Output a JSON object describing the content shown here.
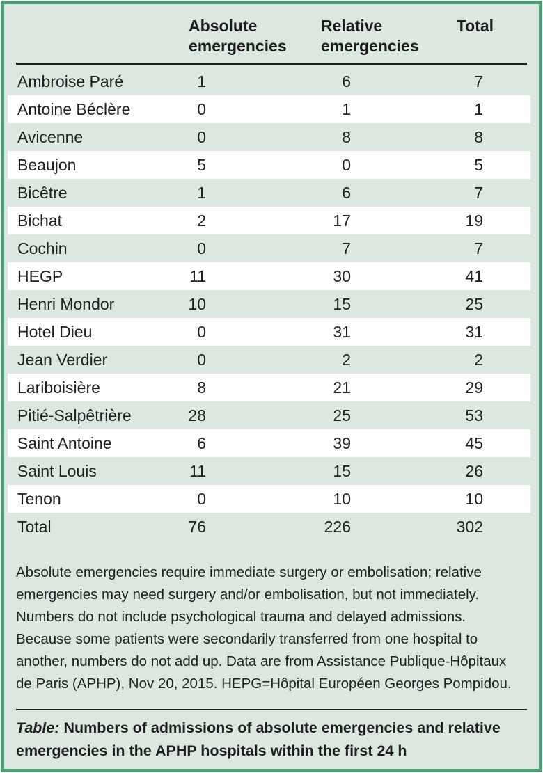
{
  "colors": {
    "background_green": "#dbe8e0",
    "row_white": "#ffffff",
    "border_green": "#4d9c73",
    "rule_dark": "#1e1e1e",
    "text": "#1e1e1e"
  },
  "table": {
    "columns": [
      "",
      "Absolute emergencies",
      "Relative emergencies",
      "Total"
    ],
    "rows": [
      {
        "name": "Ambroise Paré",
        "absolute": "1",
        "relative": "6",
        "total": "7"
      },
      {
        "name": "Antoine Béclère",
        "absolute": "0",
        "relative": "1",
        "total": "1"
      },
      {
        "name": "Avicenne",
        "absolute": "0",
        "relative": "8",
        "total": "8"
      },
      {
        "name": "Beaujon",
        "absolute": "5",
        "relative": "0",
        "total": "5"
      },
      {
        "name": "Bicêtre",
        "absolute": "1",
        "relative": "6",
        "total": "7"
      },
      {
        "name": "Bichat",
        "absolute": "2",
        "relative": "17",
        "total": "19"
      },
      {
        "name": "Cochin",
        "absolute": "0",
        "relative": "7",
        "total": "7"
      },
      {
        "name": "HEGP",
        "absolute": "11",
        "relative": "30",
        "total": "41"
      },
      {
        "name": "Henri Mondor",
        "absolute": "10",
        "relative": "15",
        "total": "25"
      },
      {
        "name": "Hotel Dieu",
        "absolute": "0",
        "relative": "31",
        "total": "31"
      },
      {
        "name": "Jean Verdier",
        "absolute": "0",
        "relative": "2",
        "total": "2"
      },
      {
        "name": "Lariboisière",
        "absolute": "8",
        "relative": "21",
        "total": "29"
      },
      {
        "name": "Pitié-Salpêtrière",
        "absolute": "28",
        "relative": "25",
        "total": "53"
      },
      {
        "name": "Saint Antoine",
        "absolute": "6",
        "relative": "39",
        "total": "45"
      },
      {
        "name": "Saint Louis",
        "absolute": "11",
        "relative": "15",
        "total": "26"
      },
      {
        "name": "Tenon",
        "absolute": "0",
        "relative": "10",
        "total": "10"
      },
      {
        "name": "Total",
        "absolute": "76",
        "relative": "226",
        "total": "302"
      }
    ]
  },
  "footnote": "Absolute emergencies require immediate surgery or embolisation; relative emergencies may need surgery and/or embolisation, but not immediately. Numbers do not include psychological trauma and delayed admissions. Because some patients were secondarily transferred from one hospital to another, numbers do not add up. Data are from Assistance Publique-Hôpitaux de Paris (APHP), Nov 20, 2015. HEPG=Hôpital Européen Georges Pompidou.",
  "caption": {
    "label": "Table:",
    "text": " Numbers of admissions of absolute emergencies and relative emergencies in the APHP hospitals within the first 24 h"
  }
}
